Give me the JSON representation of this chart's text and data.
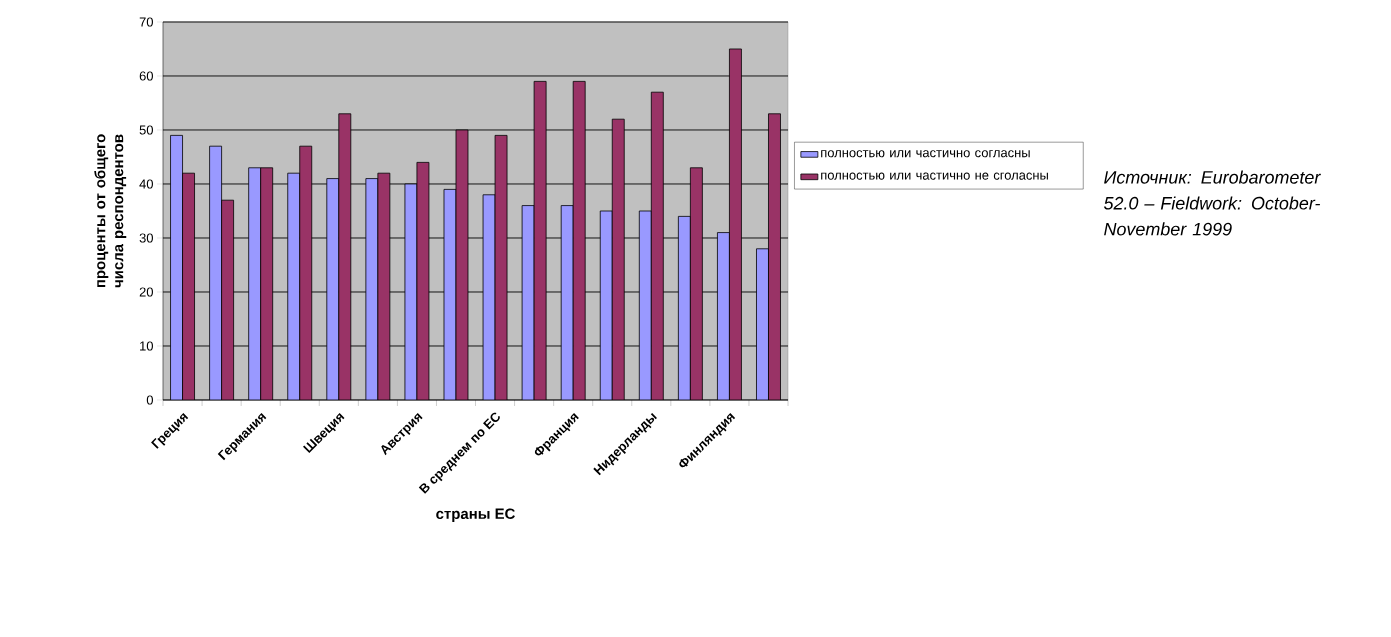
{
  "chart_data": {
    "type": "bar",
    "xlabel": "страны ЕС",
    "ylabel": "проценты от общего числа респондентов",
    "categories": [
      "Греция",
      null,
      "Германия",
      null,
      "Швеция",
      null,
      "Австрия",
      null,
      "В среднем по ЕС",
      null,
      "Франция",
      null,
      "Нидерланды",
      null,
      "Финляндия",
      null
    ],
    "series": [
      {
        "name": "полностью или частично согласны",
        "color": "#9999ff",
        "values": [
          49,
          47,
          43,
          42,
          41,
          41,
          40,
          39,
          38,
          36,
          36,
          35,
          35,
          34,
          31,
          28
        ]
      },
      {
        "name": "полностью или частично не сголасны",
        "color": "#993366",
        "values": [
          42,
          37,
          43,
          47,
          53,
          42,
          44,
          50,
          49,
          59,
          59,
          52,
          57,
          43,
          65,
          53
        ]
      }
    ],
    "ylim": [
      0,
      70
    ],
    "yticks": [
      0,
      10,
      20,
      30,
      40,
      50,
      60,
      70
    ],
    "grid": "y",
    "legend": "right",
    "annotations": [
      "*Источник: Eurobarometer 52.0 – Fieldwork: October-November 1999*"
    ]
  }
}
